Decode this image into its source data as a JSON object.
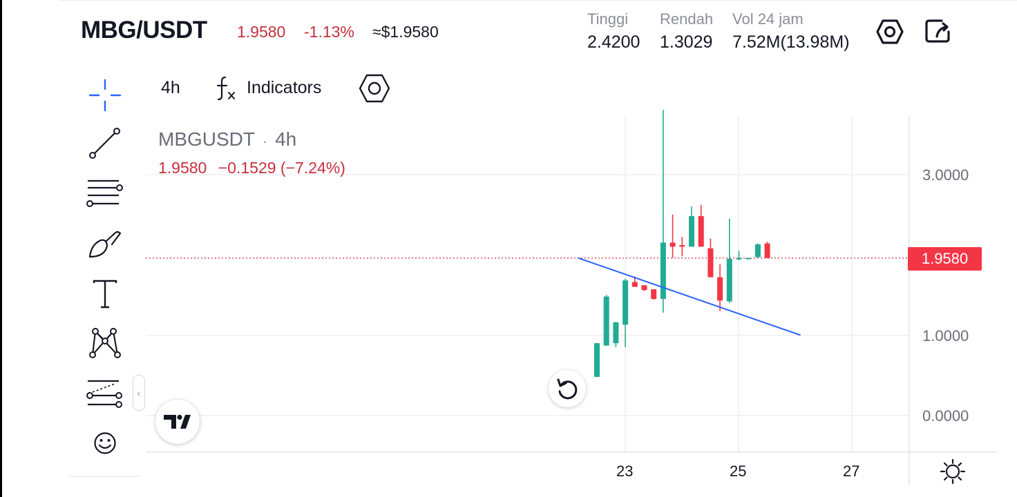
{
  "header": {
    "pair": "MBG/USDT",
    "last_price": "1.9580",
    "change_pct": "-1.13%",
    "usd_price": "≈$1.9580",
    "stats": [
      {
        "label": "Tinggi",
        "value": "2.4200"
      },
      {
        "label": "Rendah",
        "value": "1.3029"
      },
      {
        "label": "Vol 24 jam",
        "value": "7.52M(13.98M)"
      }
    ]
  },
  "toolbar": {
    "interval": "4h",
    "indicators_label": "Indicators"
  },
  "left_tools": [
    {
      "icon": "crosshair-icon"
    },
    {
      "icon": "trend-line-icon"
    },
    {
      "icon": "fib-retracement-icon"
    },
    {
      "icon": "brush-icon"
    },
    {
      "icon": "text-tool-icon"
    },
    {
      "icon": "pattern-icon"
    },
    {
      "icon": "prediction-icon"
    },
    {
      "icon": "emoji-icon"
    }
  ],
  "legend": {
    "symbol": "MBGUSDT",
    "separator": "·",
    "interval": "4h",
    "price": "1.9580",
    "change": "−0.1529 (−7.24%)"
  },
  "price_axis": {
    "labels": [
      "3.0000",
      "1.0000",
      "0.0000"
    ],
    "current_price_tag": "1.9580"
  },
  "time_axis": {
    "labels": [
      "23",
      "25",
      "27"
    ]
  },
  "colors": {
    "up": "#22ab94",
    "down": "#f23645",
    "trendline": "#2962ff",
    "header_red": "#c62f3c"
  },
  "chart_data": {
    "type": "candlestick",
    "interval": "4h",
    "ylim": [
      -0.45,
      3.8
    ],
    "y_ticks": [
      0.0,
      1.0,
      3.0
    ],
    "x_ticks": [
      "23",
      "25",
      "27"
    ],
    "current_price": 1.958,
    "candles": [
      {
        "o": 0.48,
        "h": 0.9,
        "l": 0.48,
        "c": 0.9
      },
      {
        "o": 0.87,
        "h": 1.5,
        "l": 0.87,
        "c": 1.48
      },
      {
        "o": 0.9,
        "h": 1.16,
        "l": 0.85,
        "c": 1.16
      },
      {
        "o": 1.13,
        "h": 1.7,
        "l": 0.85,
        "c": 1.68
      },
      {
        "o": 1.66,
        "h": 1.73,
        "l": 1.6,
        "c": 1.6
      },
      {
        "o": 1.62,
        "h": 1.62,
        "l": 1.55,
        "c": 1.56
      },
      {
        "o": 1.57,
        "h": 1.57,
        "l": 1.44,
        "c": 1.45
      },
      {
        "o": 1.45,
        "h": 3.8,
        "l": 1.28,
        "c": 2.15
      },
      {
        "o": 2.15,
        "h": 2.5,
        "l": 1.96,
        "c": 2.1
      },
      {
        "o": 2.12,
        "h": 2.22,
        "l": 1.98,
        "c": 2.1
      },
      {
        "o": 2.1,
        "h": 2.6,
        "l": 2.1,
        "c": 2.48
      },
      {
        "o": 2.48,
        "h": 2.62,
        "l": 2.1,
        "c": 2.1
      },
      {
        "o": 2.08,
        "h": 2.2,
        "l": 1.72,
        "c": 1.72
      },
      {
        "o": 1.72,
        "h": 1.88,
        "l": 1.3,
        "c": 1.43
      },
      {
        "o": 1.42,
        "h": 2.45,
        "l": 1.4,
        "c": 1.95
      },
      {
        "o": 1.95,
        "h": 2.05,
        "l": 1.93,
        "c": 1.96
      },
      {
        "o": 1.95,
        "h": 1.96,
        "l": 1.95,
        "c": 1.96
      },
      {
        "o": 1.97,
        "h": 2.14,
        "l": 1.96,
        "c": 2.13
      },
      {
        "o": 2.14,
        "h": 2.16,
        "l": 1.96,
        "c": 1.958
      }
    ],
    "trendline": {
      "from": {
        "candle_index": -2,
        "price": 1.96
      },
      "to": {
        "candle_index": 21.5,
        "price": 1.0
      }
    }
  }
}
